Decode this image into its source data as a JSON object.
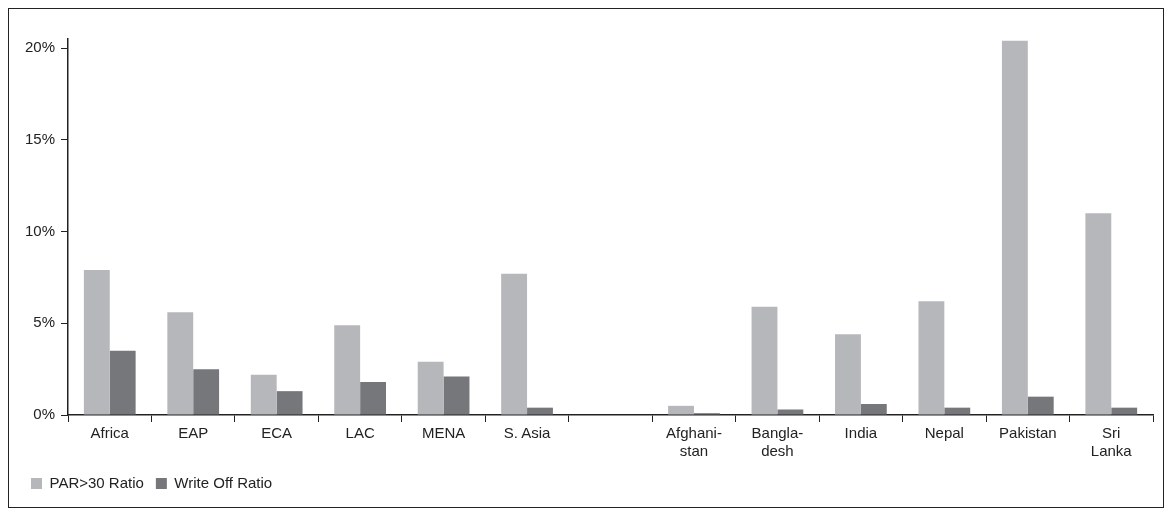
{
  "chart_data": {
    "type": "bar",
    "categories": [
      "Africa",
      "EAP",
      "ECA",
      "LAC",
      "MENA",
      "S. Asia",
      null,
      "Afghani-\nstan",
      "Bangla-\ndesh",
      "India",
      "Nepal",
      "Pakistan",
      "Sri\nLanka"
    ],
    "series": [
      {
        "name": "PAR>30 Ratio",
        "color": "#b6b7bb",
        "values": [
          7.9,
          5.6,
          2.2,
          4.9,
          2.9,
          7.7,
          null,
          0.5,
          5.9,
          4.4,
          6.2,
          20.4,
          11.0
        ]
      },
      {
        "name": "Write Off Ratio",
        "color": "#76777b",
        "values": [
          3.5,
          2.5,
          1.3,
          1.8,
          2.1,
          0.4,
          null,
          0.1,
          0.3,
          0.6,
          0.4,
          1.0,
          0.4
        ]
      }
    ],
    "ylim": [
      0,
      20.5
    ],
    "yticks": [
      {
        "value": 0,
        "label": "0%"
      },
      {
        "value": 5,
        "label": "5%"
      },
      {
        "value": 10,
        "label": "10%"
      },
      {
        "value": 15,
        "label": "15%"
      },
      {
        "value": 20,
        "label": "20%"
      }
    ],
    "grid": false,
    "legend": "bottom left"
  }
}
